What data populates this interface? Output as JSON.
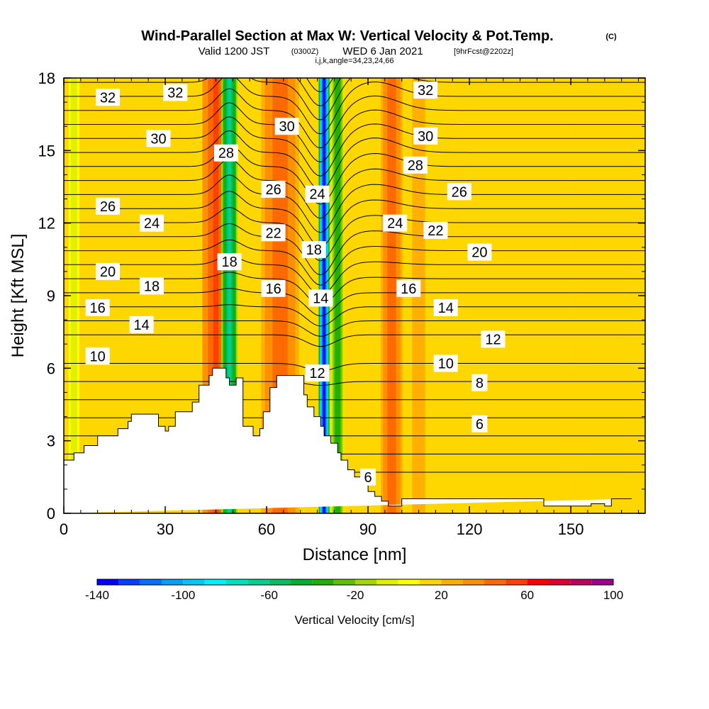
{
  "header": {
    "title": "Wind-Parallel Section at Max W: Vertical Velocity & Pot.Temp.",
    "copyright": "(C)",
    "valid_prefix": "Valid 1200 JST",
    "valid_utc": "(0300Z)",
    "valid_date": "WED 6 Jan 2021",
    "forecast": "[9hrFcst@2202z]",
    "indices": "i,j,k,angle=34,23,24,66"
  },
  "colors": {
    "background_field": "#ffd700",
    "contour": "#000000",
    "terrain": "#ffffff"
  },
  "colorbar": {
    "label": "Vertical Velocity [cm/s]",
    "tick_labels": [
      "-140",
      "-100",
      "-60",
      "-20",
      "20",
      "60",
      "100"
    ],
    "tick_values": [
      -140,
      -100,
      -60,
      -20,
      20,
      60,
      100
    ],
    "range": [
      -140,
      100
    ],
    "step": 10,
    "colors": [
      "#0000ff",
      "#0040ff",
      "#0070ff",
      "#00a0ff",
      "#00c8ff",
      "#00f0ff",
      "#00e0c0",
      "#00d090",
      "#00c060",
      "#00b030",
      "#20b000",
      "#60c000",
      "#a0d800",
      "#e0f000",
      "#ffff00",
      "#ffd700",
      "#ffb000",
      "#ff9000",
      "#ff6a00",
      "#ff4000",
      "#ff0000",
      "#e00030",
      "#c00060",
      "#a00090",
      "#800090"
    ]
  },
  "chart_data": {
    "type": "heatmap",
    "title": "Wind-Parallel Section at Max W: Vertical Velocity & Pot.Temp.",
    "xlabel": "Distance [nm]",
    "ylabel": "Height [Kft MSL]",
    "xlim": [
      0,
      172
    ],
    "ylim": [
      0,
      18
    ],
    "x_ticks": [
      0,
      30,
      60,
      90,
      120,
      150
    ],
    "y_ticks": [
      0,
      3,
      6,
      9,
      12,
      15,
      18
    ],
    "x_tick_labels": [
      "0",
      "30",
      "60",
      "90",
      "120",
      "150"
    ],
    "y_tick_labels": [
      "0",
      "3",
      "6",
      "9",
      "12",
      "15",
      "18"
    ],
    "fill_variable": "Vertical Velocity [cm/s]",
    "contour_variable": "Potential Temperature",
    "velocity_bands": [
      {
        "x_center": 3,
        "width": 2,
        "value": -10
      },
      {
        "x_center": 45,
        "width": 5,
        "value": 55
      },
      {
        "x_center": 49,
        "width": 3,
        "value": -70
      },
      {
        "x_center": 55,
        "width": 3,
        "value": 10
      },
      {
        "x_center": 64,
        "width": 7,
        "value": 45
      },
      {
        "x_center": 77,
        "width": 2,
        "value": -140
      },
      {
        "x_center": 81,
        "width": 2.5,
        "value": -40
      },
      {
        "x_center": 97,
        "width": 4,
        "value": 45
      },
      {
        "x_center": 105,
        "width": 3,
        "value": 25
      },
      {
        "x_center": 155,
        "width": 6,
        "value": 15
      }
    ],
    "terrain": {
      "x": [
        0,
        3,
        3,
        6,
        6,
        10,
        10,
        16,
        16,
        19,
        19,
        20,
        20,
        22,
        22,
        24,
        24,
        28,
        28,
        30,
        30,
        31,
        31,
        33,
        33,
        38,
        38,
        40,
        40,
        43,
        43,
        44,
        44,
        48,
        48,
        49,
        49,
        51,
        51,
        53,
        53,
        56,
        56,
        58,
        58,
        59,
        59,
        61,
        61,
        63,
        63,
        65,
        65,
        71,
        71,
        72,
        72,
        74,
        74,
        76,
        76,
        77,
        77,
        79,
        79,
        81,
        81,
        82,
        82,
        84,
        84,
        86,
        86,
        88,
        88,
        90,
        90,
        92,
        92,
        94,
        94,
        96,
        96,
        97,
        97,
        100,
        100,
        142,
        142,
        156,
        156,
        160,
        160,
        162,
        162,
        168,
        168,
        172
      ],
      "y": [
        2.2,
        2.2,
        2.5,
        2.5,
        2.8,
        2.8,
        3.2,
        3.2,
        3.5,
        3.5,
        3.8,
        3.8,
        4.1,
        4.1,
        4.1,
        4.1,
        4.1,
        4.1,
        3.6,
        3.6,
        3.4,
        3.4,
        3.6,
        3.6,
        4.2,
        4.2,
        4.6,
        4.6,
        5.3,
        5.3,
        5.7,
        5.7,
        6.0,
        6.0,
        5.6,
        5.6,
        5.3,
        5.3,
        5.6,
        5.6,
        3.6,
        3.6,
        3.2,
        3.2,
        3.5,
        3.5,
        4.2,
        4.2,
        5.2,
        5.2,
        5.7,
        5.7,
        5.7,
        5.7,
        4.9,
        4.9,
        4.4,
        4.4,
        4.0,
        4.0,
        3.6,
        3.6,
        3.2,
        3.2,
        2.9,
        2.9,
        2.5,
        2.5,
        2.2,
        2.2,
        1.8,
        1.8,
        1.5,
        1.5,
        1.2,
        1.2,
        0.9,
        0.9,
        0.7,
        0.7,
        0.5,
        0.5,
        0.3,
        0.3,
        0.3,
        0.3,
        0.6,
        0.6,
        0.3,
        0.3,
        0.4,
        0.4,
        0.3,
        0.3,
        0.6,
        0.6,
        0.6
      ]
    },
    "potential_temperature_labels": [
      {
        "value": "32",
        "x": 13,
        "y": 17.2
      },
      {
        "value": "32",
        "x": 33,
        "y": 17.4
      },
      {
        "value": "32",
        "x": 107,
        "y": 17.5
      },
      {
        "value": "30",
        "x": 28,
        "y": 15.5
      },
      {
        "value": "30",
        "x": 66,
        "y": 16.0
      },
      {
        "value": "30",
        "x": 107,
        "y": 15.6
      },
      {
        "value": "28",
        "x": 48,
        "y": 14.9
      },
      {
        "value": "28",
        "x": 104,
        "y": 14.4
      },
      {
        "value": "26",
        "x": 13,
        "y": 12.7
      },
      {
        "value": "26",
        "x": 62,
        "y": 13.4
      },
      {
        "value": "26",
        "x": 117,
        "y": 13.3
      },
      {
        "value": "24",
        "x": 26,
        "y": 12.0
      },
      {
        "value": "24",
        "x": 75,
        "y": 13.2
      },
      {
        "value": "24",
        "x": 98,
        "y": 12.0
      },
      {
        "value": "22",
        "x": 62,
        "y": 11.6
      },
      {
        "value": "22",
        "x": 110,
        "y": 11.7
      },
      {
        "value": "20",
        "x": 13,
        "y": 10.0
      },
      {
        "value": "20",
        "x": 123,
        "y": 10.8
      },
      {
        "value": "18",
        "x": 49,
        "y": 10.4
      },
      {
        "value": "18",
        "x": 74,
        "y": 10.9
      },
      {
        "value": "18",
        "x": 26,
        "y": 9.4
      },
      {
        "value": "16",
        "x": 10,
        "y": 8.5
      },
      {
        "value": "16",
        "x": 62,
        "y": 9.3
      },
      {
        "value": "16",
        "x": 102,
        "y": 9.3
      },
      {
        "value": "14",
        "x": 23,
        "y": 7.8
      },
      {
        "value": "14",
        "x": 76,
        "y": 8.9
      },
      {
        "value": "14",
        "x": 113,
        "y": 8.5
      },
      {
        "value": "12",
        "x": 127,
        "y": 7.2
      },
      {
        "value": "12",
        "x": 75,
        "y": 5.8
      },
      {
        "value": "10",
        "x": 10,
        "y": 6.5
      },
      {
        "value": "10",
        "x": 113,
        "y": 6.2
      },
      {
        "value": "8",
        "x": 123,
        "y": 5.4
      },
      {
        "value": "6",
        "x": 123,
        "y": 3.7
      },
      {
        "value": "6",
        "x": 90,
        "y": 1.5
      }
    ]
  }
}
